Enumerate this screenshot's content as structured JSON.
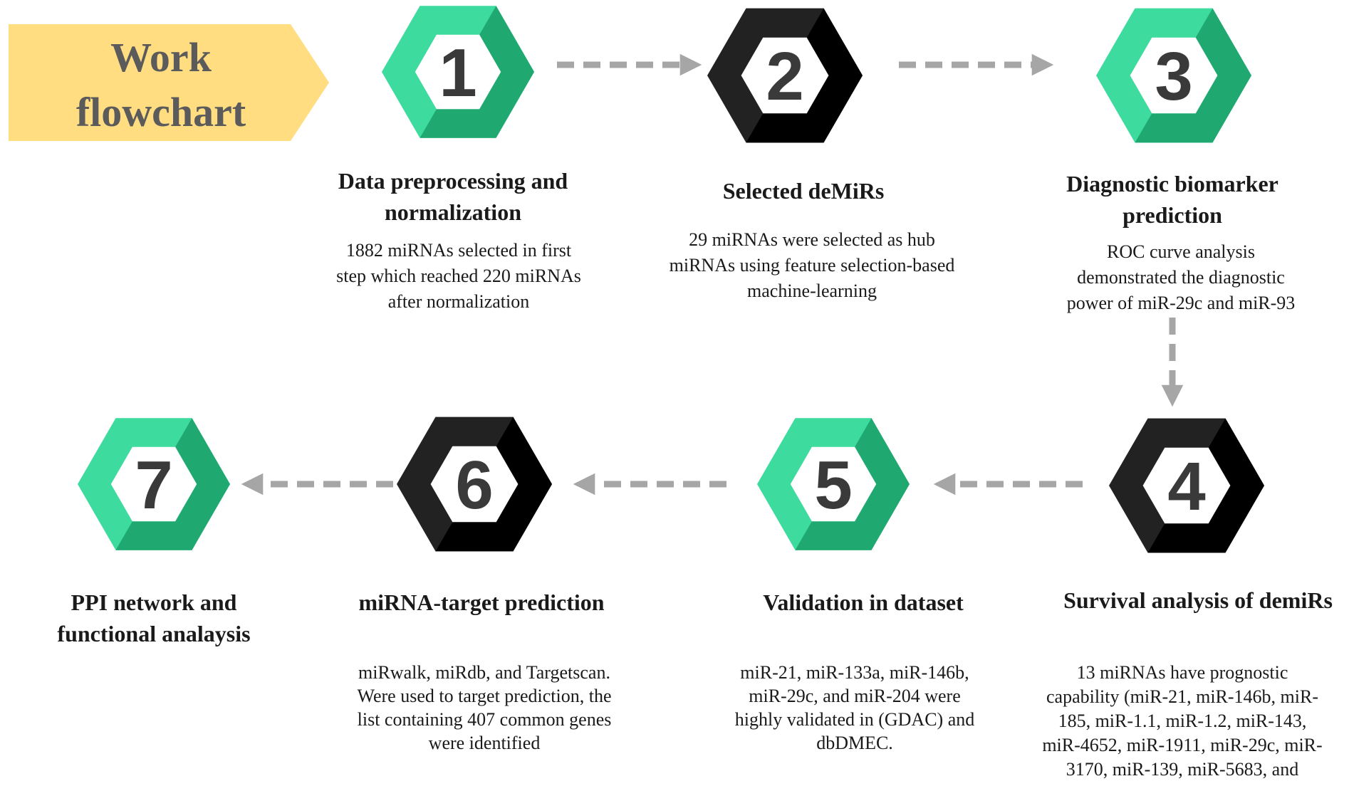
{
  "banner": {
    "lines": [
      "Work",
      "flowchart"
    ],
    "color": "#FFDD80"
  },
  "colors": {
    "green_light": "#3DDB9E",
    "green_dark": "#1FA86F",
    "black": "#222222",
    "black_dark": "#000000",
    "arrow": "#A6A6A6"
  },
  "steps": [
    {
      "number": "1",
      "style": "green",
      "title": [
        "Data preprocessing and",
        "normalization"
      ],
      "description": [
        "1882 miRNAs selected in first",
        "step which reached 220 miRNAs",
        "after normalization"
      ]
    },
    {
      "number": "2",
      "style": "black",
      "title": [
        "Selected deMiRs"
      ],
      "description": [
        "29 miRNAs were selected as hub",
        "miRNAs using feature selection-based",
        "machine-learning"
      ]
    },
    {
      "number": "3",
      "style": "green",
      "title": [
        "Diagnostic biomarker",
        "prediction"
      ],
      "description": [
        "ROC curve analysis",
        "demonstrated the diagnostic",
        "power of miR-29c and miR-93"
      ]
    },
    {
      "number": "4",
      "style": "black",
      "title": [
        "Survival analysis of demiRs"
      ],
      "description": [
        "13 miRNAs have prognostic",
        "capability (miR-21, miR-146b, miR-",
        "185, miR-1.1, miR-1.2, miR-143,",
        "miR-4652, miR-1911, miR-29c, miR-",
        "3170, miR-139, miR-5683, and"
      ]
    },
    {
      "number": "5",
      "style": "green",
      "title": [
        "Validation in dataset"
      ],
      "description": [
        "miR-21, miR-133a, miR-146b,",
        "miR-29c, and miR-204 were",
        "highly validated in (GDAC) and",
        "dbDMEC."
      ]
    },
    {
      "number": "6",
      "style": "black",
      "title": [
        "miRNA-target prediction"
      ],
      "description": [
        "miRwalk, miRdb, and Targetscan.",
        "Were used to target prediction, the",
        "list containing 407 common genes",
        "were identified"
      ]
    },
    {
      "number": "7",
      "style": "green",
      "title": [
        "PPI network and",
        "functional analaysis"
      ],
      "description": []
    }
  ]
}
